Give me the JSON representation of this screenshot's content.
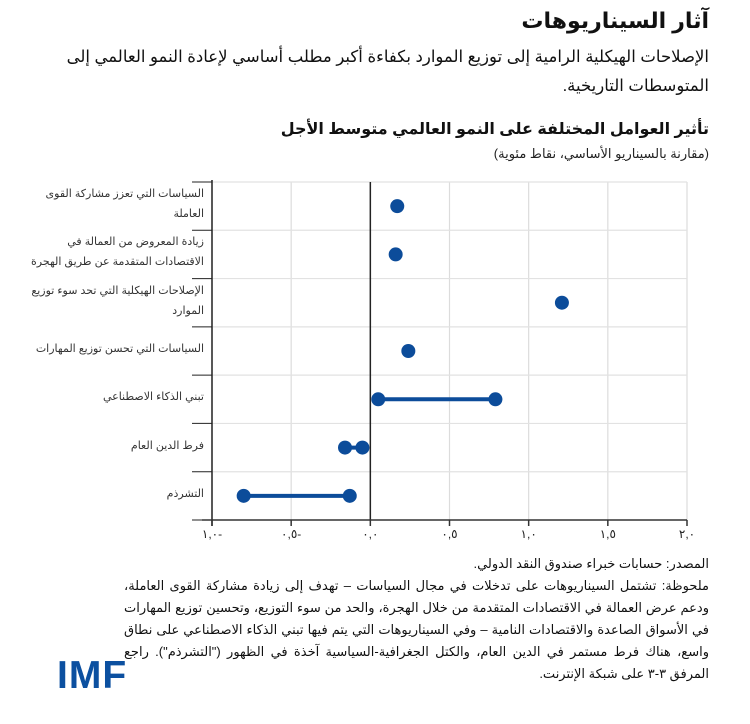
{
  "header": {
    "title": "آثار السيناريوهات",
    "subtitle": "الإصلاحات الهيكلية الرامية إلى توزيع الموارد بكفاءة أكبر مطلب أساسي لإعادة النمو العالمي إلى المتوسطات التاريخية."
  },
  "chart": {
    "title": "تأثير العوامل المختلفة على النمو العالمي متوسط الأجل",
    "subtitle": "(مقارنة بالسيناريو الأساسي، نقاط مئوية)"
  },
  "chart_data": {
    "type": "dot-range",
    "title": "تأثير العوامل المختلفة على النمو العالمي متوسط الأجل",
    "subtitle": "(مقارنة بالسيناريو الأساسي، نقاط مئوية)",
    "xlabel": "",
    "ylabel": "",
    "xlim": [
      -1.0,
      2.0
    ],
    "x_ticks": [
      -1.0,
      -0.5,
      0.0,
      0.5,
      1.0,
      1.5,
      2.0
    ],
    "x_tick_labels": [
      "١,٠-",
      "٠,٥-",
      "٠,٠",
      "٠,٥",
      "١,٠",
      "١,٥",
      "٢,٠"
    ],
    "grid": true,
    "color": "#0c4c9a",
    "categories": [
      "السياسات التي تعزز مشاركة القوى العاملة",
      "زيادة المعروض من العمالة في الاقتصادات المتقدمة عن طريق الهجرة",
      "الإصلاحات الهيكلية التي تحد سوء توزيع الموارد",
      "السياسات التي تحسن توزيع المهارات",
      "تبني الذكاء الاصطناعي",
      "فرط الدين العام",
      "التشرذم"
    ],
    "series": [
      {
        "name": "low",
        "values": [
          0.17,
          0.16,
          1.21,
          0.24,
          0.05,
          -0.16,
          -0.8
        ]
      },
      {
        "name": "high",
        "values": [
          0.17,
          0.16,
          1.21,
          0.24,
          0.79,
          -0.05,
          -0.13
        ]
      }
    ]
  },
  "footnote": {
    "source": "المصدر: حسابات خبراء صندوق النقد الدولي.",
    "note": "ملحوظة: تشتمل السيناريوهات على تدخلات في مجال السياسات – تهدف إلى زيادة مشاركة القوى العاملة، ودعم عرض العمالة في الاقتصادات المتقدمة من خلال الهجرة، والحد من سوء التوزيع، وتحسين توزيع المهارات في الأسواق الصاعدة والاقتصادات النامية – وفي السيناريوهات التي يتم فيها تبني الذكاء الاصطناعي على نطاق واسع، هناك فرط مستمر في الدين العام، والكتل الجغرافية-السياسية آخذة في الظهور (\"التشرذم\"). راجع المرفق ٣-٣ على شبكة الإنترنت."
  },
  "logo": {
    "text": "IMF"
  }
}
